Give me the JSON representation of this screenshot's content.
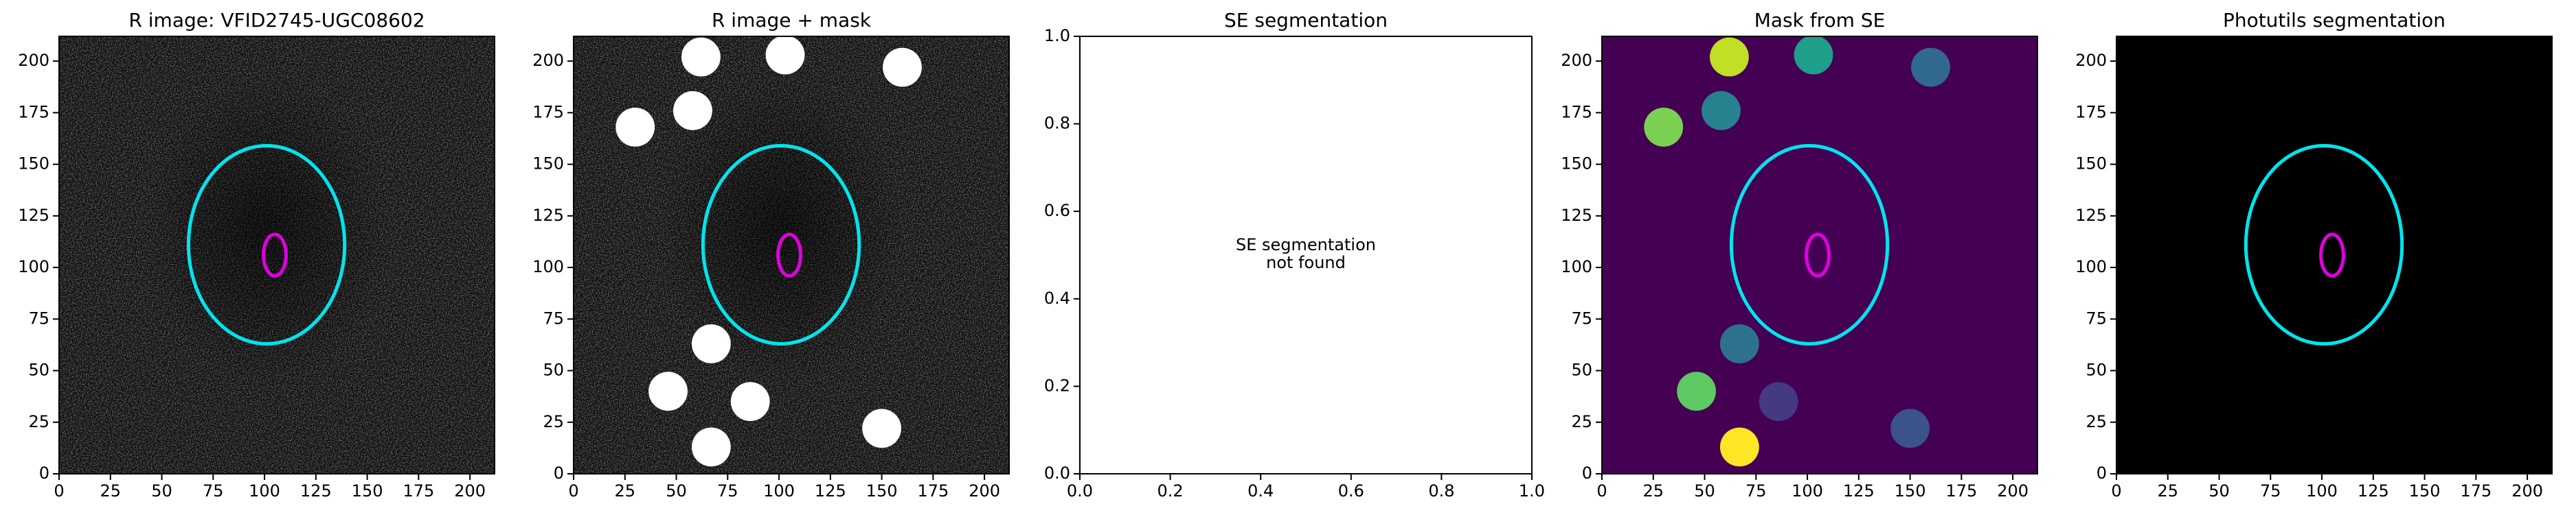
{
  "chart_data": [
    {
      "type": "noise-image",
      "title": "R image: VFID2745-UGC08602",
      "xlim": [
        0,
        212
      ],
      "ylim": [
        0,
        212
      ],
      "xticks": [
        0,
        25,
        50,
        75,
        100,
        125,
        150,
        175,
        200
      ],
      "yticks": [
        0,
        25,
        50,
        75,
        100,
        125,
        150,
        175,
        200
      ],
      "ellipses": [
        {
          "x": 101,
          "y": 111,
          "rx": 38,
          "ry": 48,
          "color": "#00e5ee"
        },
        {
          "x": 105,
          "y": 106,
          "rx": 5.5,
          "ry": 10,
          "color": "#e000e0"
        }
      ]
    },
    {
      "type": "noise-image",
      "title": "R image + mask",
      "xlim": [
        0,
        212
      ],
      "ylim": [
        0,
        212
      ],
      "xticks": [
        0,
        25,
        50,
        75,
        100,
        125,
        150,
        175,
        200
      ],
      "yticks": [
        0,
        25,
        50,
        75,
        100,
        125,
        150,
        175,
        200
      ],
      "ellipses": [
        {
          "x": 101,
          "y": 111,
          "rx": 38,
          "ry": 48,
          "color": "#00e5ee"
        },
        {
          "x": 105,
          "y": 106,
          "rx": 5.5,
          "ry": 10,
          "color": "#e000e0"
        }
      ],
      "masks": {
        "x": [
          62,
          103,
          160,
          30,
          58,
          67,
          46,
          86,
          150,
          67
        ],
        "y": [
          202,
          203,
          197,
          168,
          176,
          63,
          40,
          35,
          22,
          13
        ],
        "r": 9.5,
        "color": "#ffffff"
      }
    },
    {
      "type": "empty",
      "title": "SE segmentation",
      "xlim": [
        0,
        1
      ],
      "ylim": [
        0,
        1
      ],
      "xticks": [
        {
          "value": 0,
          "label": "0.0"
        },
        {
          "value": 0.2,
          "label": "0.2"
        },
        {
          "value": 0.4,
          "label": "0.4"
        },
        {
          "value": 0.6,
          "label": "0.6"
        },
        {
          "value": 0.8,
          "label": "0.8"
        },
        {
          "value": 1,
          "label": "1.0"
        }
      ],
      "yticks": [
        {
          "value": 0,
          "label": "0.0"
        },
        {
          "value": 0.2,
          "label": "0.2"
        },
        {
          "value": 0.4,
          "label": "0.4"
        },
        {
          "value": 0.6,
          "label": "0.6"
        },
        {
          "value": 0.8,
          "label": "0.8"
        },
        {
          "value": 1,
          "label": "1.0"
        }
      ],
      "annotation": [
        "SE segmentation",
        "not found"
      ]
    },
    {
      "type": "mask-image",
      "title": "Mask from SE",
      "xlim": [
        0,
        212
      ],
      "ylim": [
        0,
        212
      ],
      "background": "#440154",
      "xticks": [
        0,
        25,
        50,
        75,
        100,
        125,
        150,
        175,
        200
      ],
      "yticks": [
        0,
        25,
        50,
        75,
        100,
        125,
        150,
        175,
        200
      ],
      "ellipses": [
        {
          "x": 101,
          "y": 111,
          "rx": 38,
          "ry": 48,
          "color": "#00e5ee"
        },
        {
          "x": 105,
          "y": 106,
          "rx": 5.5,
          "ry": 10,
          "color": "#e000e0"
        }
      ],
      "masks": {
        "x": [
          62,
          103,
          160,
          30,
          58,
          67,
          46,
          86,
          150,
          67
        ],
        "y": [
          202,
          203,
          197,
          168,
          176,
          63,
          40,
          35,
          22,
          13
        ],
        "r": 9.5,
        "colors": [
          "#c0df25",
          "#1f9e89",
          "#31688e",
          "#7ad151",
          "#26828e",
          "#2c728e",
          "#5ec962",
          "#443983",
          "#3b528b",
          "#fde725"
        ]
      }
    },
    {
      "type": "mask-image",
      "title": "Photutils segmentation",
      "xlim": [
        0,
        212
      ],
      "ylim": [
        0,
        212
      ],
      "background": "#000000",
      "xticks": [
        0,
        25,
        50,
        75,
        100,
        125,
        150,
        175,
        200
      ],
      "yticks": [
        0,
        25,
        50,
        75,
        100,
        125,
        150,
        175,
        200
      ],
      "ellipses": [
        {
          "x": 101,
          "y": 111,
          "rx": 38,
          "ry": 48,
          "color": "#00e5ee"
        },
        {
          "x": 105,
          "y": 106,
          "rx": 5.5,
          "ry": 10,
          "color": "#e000e0"
        }
      ]
    }
  ]
}
